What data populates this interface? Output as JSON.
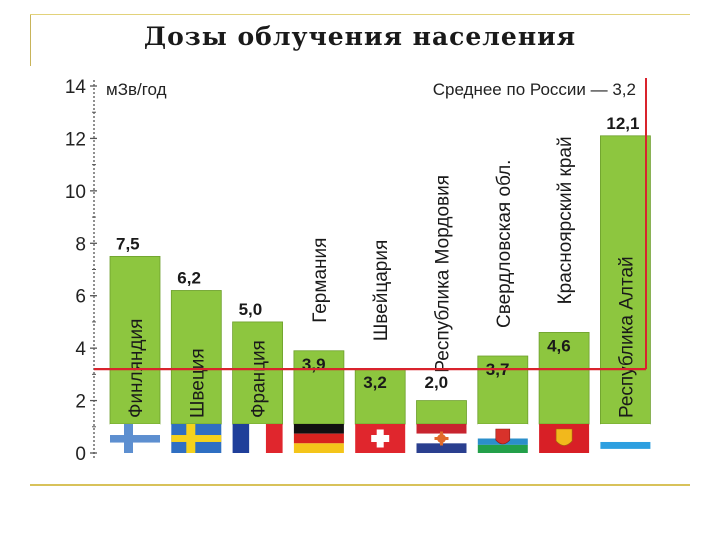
{
  "title": "Дозы облучения населения",
  "chart_data": {
    "type": "bar",
    "title": "Дозы облучения населения",
    "ylabel": "мЗв/год",
    "ylim": [
      0,
      14
    ],
    "yticks": [
      0,
      2,
      4,
      6,
      8,
      10,
      12,
      14
    ],
    "average": {
      "label": "Среднее по России — 3,2",
      "value": 3.2
    },
    "categories": [
      "Финляндия",
      "Швеция",
      "Франция",
      "Германия",
      "Швейцария",
      "Республика Мордовия",
      "Свердловская обл.",
      "Красноярский край",
      "Республика Алтай"
    ],
    "values": [
      7.5,
      6.2,
      5.0,
      3.9,
      3.2,
      2.0,
      3.7,
      4.6,
      12.1
    ],
    "value_labels": [
      "7,5",
      "6,2",
      "5,0",
      "3,9",
      "3,2",
      "2,0",
      "3,7",
      "4,6",
      "12,1"
    ],
    "colors": {
      "bar": "#8dc63f",
      "bar_border": "#6d9f2c",
      "average_line": "#d9232d",
      "axis": "#555555"
    },
    "flags": [
      {
        "name": "Финляндия",
        "icon": "finland-flag"
      },
      {
        "name": "Швеция",
        "icon": "sweden-flag"
      },
      {
        "name": "Франция",
        "icon": "france-flag"
      },
      {
        "name": "Германия",
        "icon": "germany-flag"
      },
      {
        "name": "Швейцария",
        "icon": "switzerland-flag"
      },
      {
        "name": "Республика Мордовия",
        "icon": "mordovia-flag"
      },
      {
        "name": "Свердловская обл.",
        "icon": "sverdlovsk-flag"
      },
      {
        "name": "Красноярский край",
        "icon": "krasnoyarsk-flag"
      },
      {
        "name": "Республика Алтай",
        "icon": "altai-flag"
      }
    ]
  }
}
